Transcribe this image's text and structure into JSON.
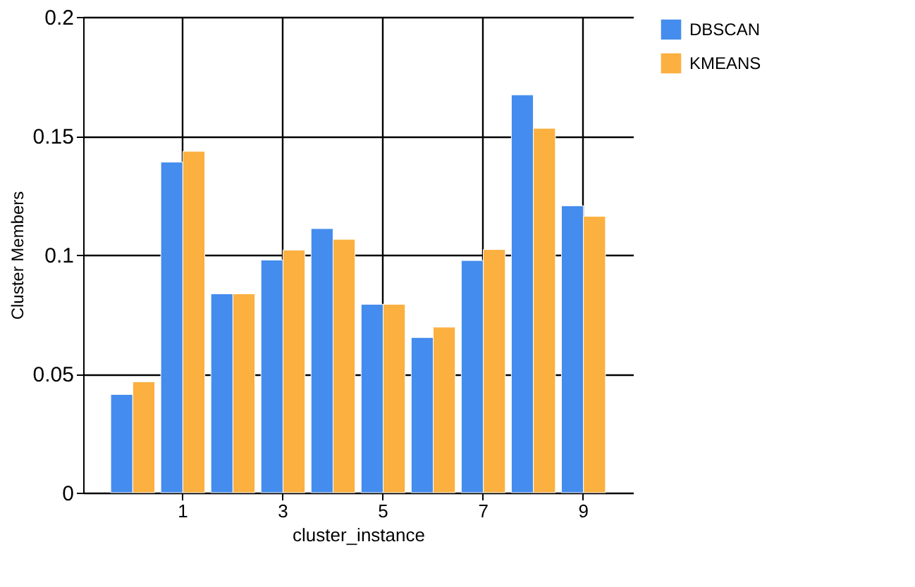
{
  "chart_data": {
    "type": "bar",
    "xlabel": "cluster_instance",
    "ylabel": "Cluster Members",
    "categories": [
      null,
      "1",
      null,
      "3",
      null,
      "5",
      null,
      "7",
      null,
      "9"
    ],
    "series": [
      {
        "name": "DBSCAN",
        "color": "#448cee",
        "values": [
          0.0413,
          0.139,
          0.0836,
          0.0978,
          0.111,
          0.0792,
          0.0652,
          0.0976,
          0.1672,
          0.1206
        ]
      },
      {
        "name": "KMEANS",
        "color": "#fbb040",
        "values": [
          0.0466,
          0.1435,
          0.0836,
          0.102,
          0.1065,
          0.0792,
          0.0696,
          0.1022,
          0.1532,
          0.1162
        ]
      }
    ],
    "ylim": [
      0,
      0.2
    ],
    "yticks": [
      0,
      0.05,
      0.1,
      0.15,
      0.2
    ],
    "grid": true,
    "legend": "top right"
  }
}
